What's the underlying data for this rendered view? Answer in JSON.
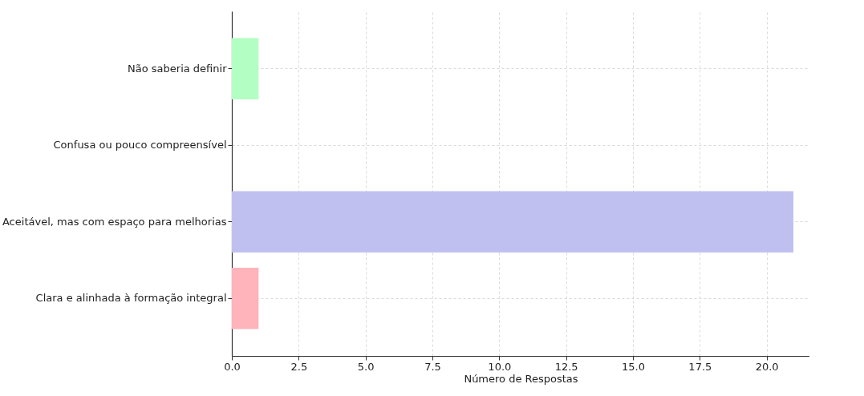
{
  "chart_data": {
    "type": "bar",
    "orientation": "horizontal",
    "xlabel": "Número de Respostas",
    "categories": [
      "Não saberia definir",
      "Confusa ou pouco compreensível",
      "Aceitável, mas com espaço para melhorias",
      "Clara e alinhada à formação integral"
    ],
    "values": [
      1,
      0,
      21,
      1
    ],
    "colors": [
      "#b3ffc3",
      "#ffdfb3",
      "#c0c0f0",
      "#ffb3ba"
    ],
    "xlim": [
      0,
      21.6
    ],
    "xticks": [
      {
        "value": 0,
        "label": "0.0"
      },
      2.5,
      {
        "value": 5,
        "label": "5.0"
      },
      7.5,
      {
        "value": 10,
        "label": "10.0"
      },
      12.5,
      {
        "value": 15,
        "label": "15.0"
      },
      17.5,
      {
        "value": 20,
        "label": "20.0"
      }
    ],
    "grid": true
  }
}
